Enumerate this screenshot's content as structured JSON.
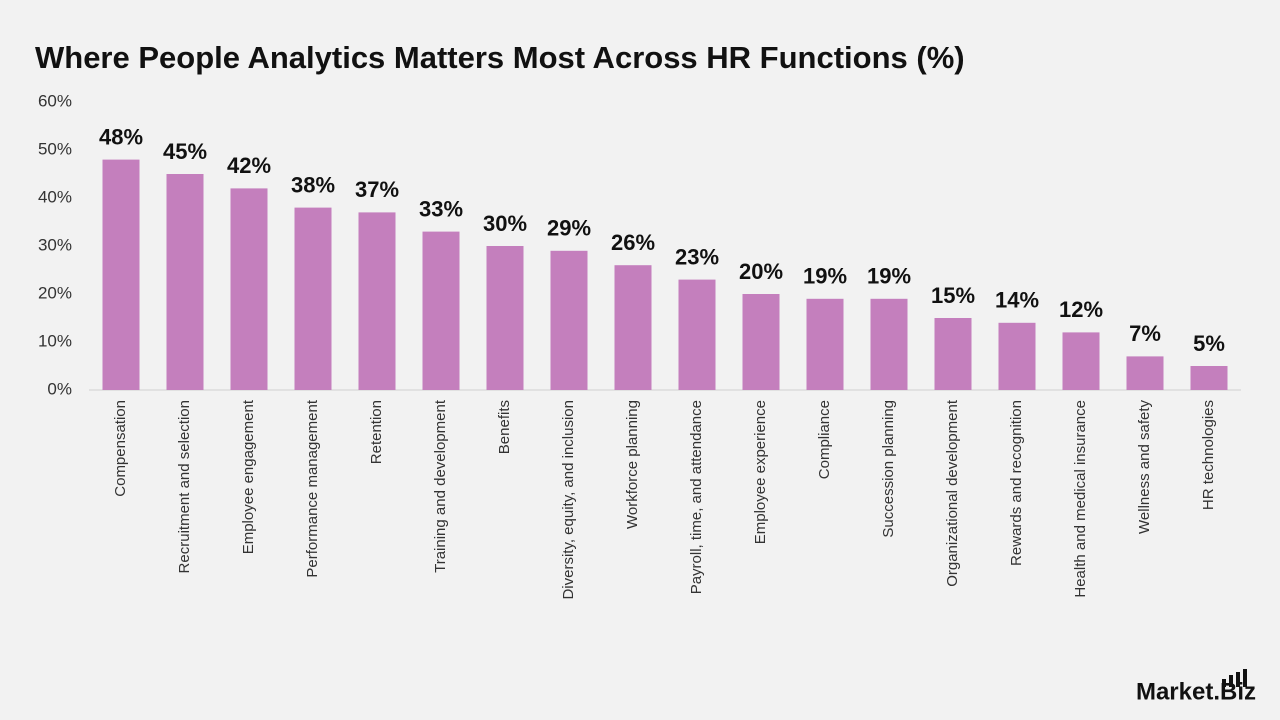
{
  "chart_data": {
    "type": "bar",
    "title": "Where People Analytics Matters Most Across HR Functions (%)",
    "categories": [
      "Compensation",
      "Recruitment and selection",
      "Employee engagement",
      "Performance management",
      "Retention",
      "Training and development",
      "Benefits",
      "Diversity, equity, and inclusion",
      "Workforce planning",
      "Payroll, time, and attendance",
      "Employee experience",
      "Compliance",
      "Succession planning",
      "Organizational development",
      "Rewards and recognition",
      "Health and medical insurance",
      "Wellness and safety",
      "HR technologies"
    ],
    "values": [
      48,
      45,
      42,
      38,
      37,
      33,
      30,
      29,
      26,
      23,
      20,
      19,
      19,
      15,
      14,
      12,
      7,
      5
    ],
    "value_labels": [
      "48%",
      "45%",
      "42%",
      "38%",
      "37%",
      "33%",
      "30%",
      "29%",
      "26%",
      "23%",
      "20%",
      "19%",
      "19%",
      "15%",
      "14%",
      "12%",
      "7%",
      "5%"
    ],
    "color": "#c47fbd",
    "ylim": [
      0,
      60
    ],
    "yticks": [
      {
        "value": 0,
        "label": "0%"
      },
      {
        "value": 10,
        "label": "10%"
      },
      {
        "value": 20,
        "label": "20%"
      },
      {
        "value": 30,
        "label": "30%"
      },
      {
        "value": 40,
        "label": "40%"
      },
      {
        "value": 50,
        "label": "50%"
      },
      {
        "value": 60,
        "label": "60%"
      }
    ],
    "grid": false
  },
  "logo": "Market.Biz"
}
